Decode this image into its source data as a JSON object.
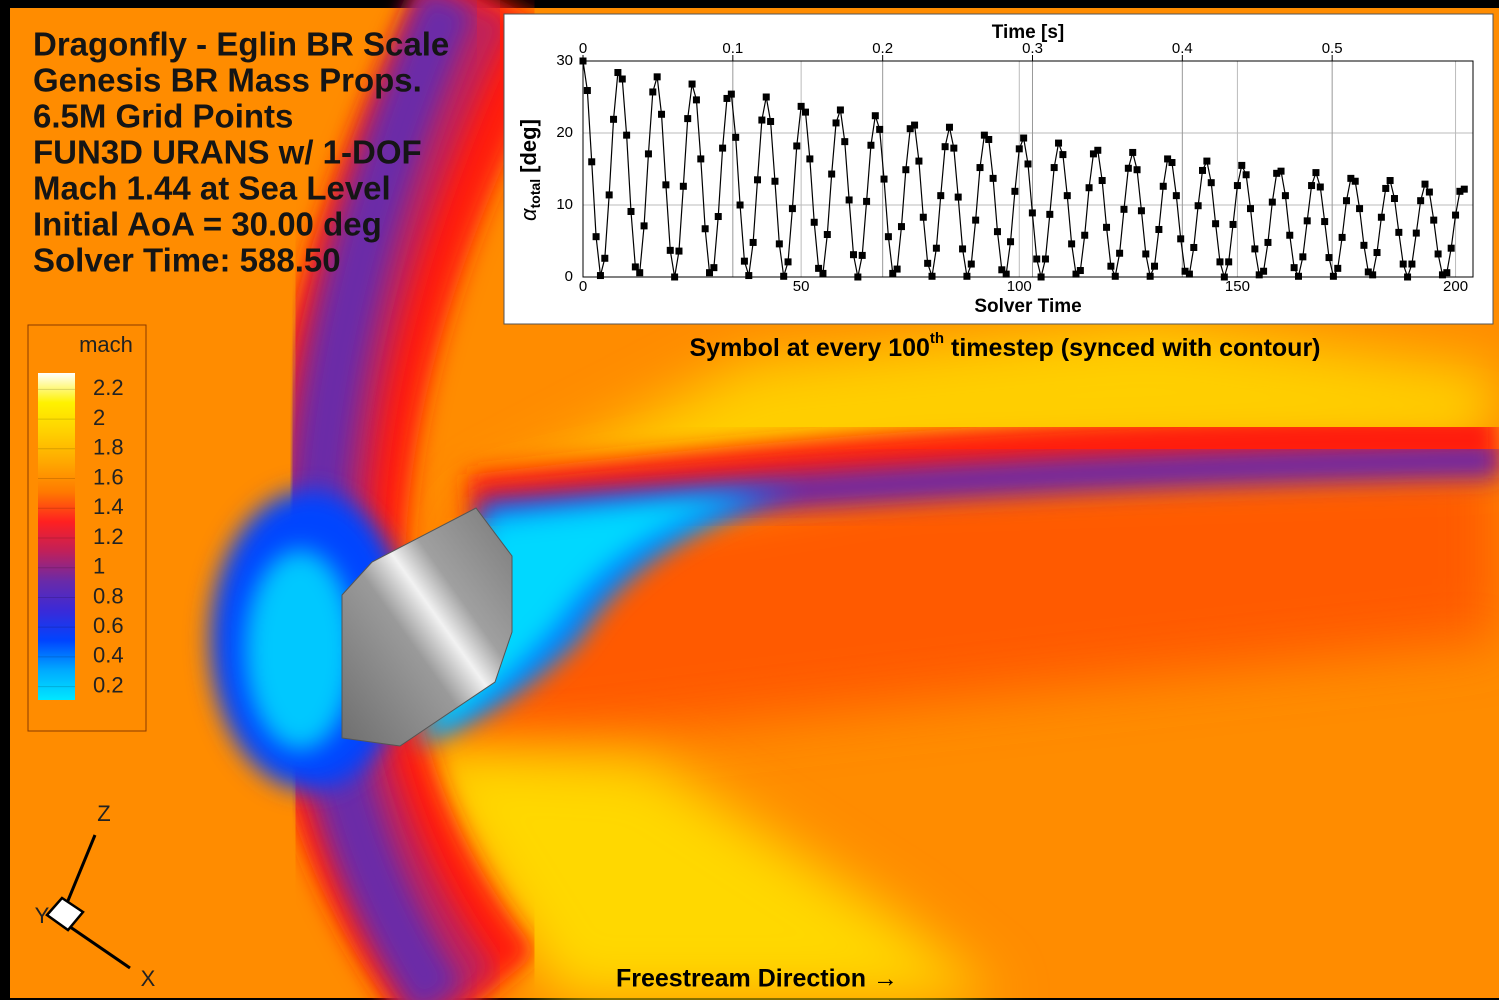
{
  "overlay_text": [
    "Dragonfly - Eglin BR Scale",
    "Genesis BR Mass Props.",
    "6.5M Grid Points",
    "FUN3D URANS w/ 1-DOF",
    "Mach 1.44 at Sea Level",
    "Initial AoA = 30.00 deg",
    "Solver Time: 588.50"
  ],
  "colorbar": {
    "title": "mach",
    "lim": [
      0.11,
      2.31
    ],
    "ticks": [
      0.2,
      0.4,
      0.6,
      0.8,
      1,
      1.2,
      1.4,
      1.6,
      1.8,
      2,
      2.2
    ],
    "colors": [
      "#00e8ff",
      "#00aaff",
      "#0044ff",
      "#3a2ad8",
      "#6a2aa8",
      "#c0205a",
      "#ff2020",
      "#ff7a00",
      "#ffa800",
      "#ffd000",
      "#fff200",
      "#ffffff"
    ]
  },
  "axes_triad": {
    "z": "Z",
    "y": "Y",
    "x": "X"
  },
  "footer": "Freestream Direction →",
  "chart_data": {
    "type": "line",
    "x_label": "Solver Time",
    "x2_label": "Time [s]",
    "y_label": {
      "symbol": "α",
      "subscript": "total",
      "unit": "[deg]"
    },
    "caption": [
      "Symbol at every 100",
      "th",
      " timestep (synced with contour)"
    ],
    "x": [
      0,
      1,
      2,
      3,
      4,
      5,
      6,
      7,
      8,
      9,
      10,
      11,
      12,
      13,
      14,
      15,
      16,
      17,
      18,
      19,
      20,
      21,
      22,
      23,
      24,
      25,
      26,
      27,
      28,
      29,
      30,
      31,
      32,
      33,
      34,
      35,
      36,
      37,
      38,
      39,
      40,
      41,
      42,
      43,
      44,
      45,
      46,
      47,
      48,
      49,
      50,
      51,
      52,
      53,
      54,
      55,
      56,
      57,
      58,
      59,
      60,
      61,
      62,
      63,
      64,
      65,
      66,
      67,
      68,
      69,
      70,
      71,
      72,
      73,
      74,
      75,
      76,
      77,
      78,
      79,
      80,
      81,
      82,
      83,
      84,
      85,
      86,
      87,
      88,
      89,
      90,
      91,
      92,
      93,
      94,
      95,
      96,
      97,
      98,
      99,
      100,
      101,
      102,
      103,
      104,
      105,
      106,
      107,
      108,
      109,
      110,
      111,
      112,
      113,
      114,
      115,
      116,
      117,
      118,
      119,
      120,
      121,
      122,
      123,
      124,
      125,
      126,
      127,
      128,
      129,
      130,
      131,
      132,
      133,
      134,
      135,
      136,
      137,
      138,
      139,
      140,
      141,
      142,
      143,
      144,
      145,
      146,
      147,
      148,
      149,
      150,
      151,
      152,
      153,
      154,
      155,
      156,
      157,
      158,
      159,
      160,
      161,
      162,
      163,
      164,
      165,
      166,
      167,
      168,
      169,
      170,
      171,
      172,
      173,
      174,
      175,
      176,
      177,
      178,
      179,
      180,
      181,
      182,
      183,
      184,
      185,
      186,
      187,
      188,
      189,
      190,
      191,
      192,
      193,
      194,
      195,
      196,
      197,
      198,
      199,
      200,
      201,
      202
    ],
    "series": [
      {
        "color": "#000000",
        "marker": "square",
        "values": [
          30,
          25.9,
          16,
          5.6,
          0.2,
          2.6,
          11.4,
          21.9,
          28.4,
          27.5,
          19.7,
          9.1,
          1.4,
          0.6,
          7.1,
          17.1,
          25.7,
          27.8,
          22.6,
          12.8,
          3.7,
          0,
          3.6,
          12.6,
          22,
          26.8,
          24.6,
          16.4,
          6.7,
          0.6,
          1.3,
          8.4,
          17.9,
          24.8,
          25.4,
          19.4,
          10,
          2.2,
          0.2,
          4.8,
          13.5,
          21.8,
          25,
          21.6,
          13.3,
          4.6,
          0.1,
          2.1,
          9.5,
          18.2,
          23.7,
          22.9,
          16.4,
          7.6,
          1.2,
          0.5,
          5.9,
          14.3,
          21.4,
          23.2,
          18.8,
          10.7,
          3.1,
          0,
          3,
          10.5,
          18.3,
          22.4,
          20.5,
          13.6,
          5.6,
          0.5,
          1.1,
          7,
          14.9,
          20.6,
          21.1,
          16.1,
          8.3,
          1.9,
          0.1,
          4,
          11.3,
          18.1,
          20.8,
          17.9,
          11.1,
          3.9,
          0.1,
          1.8,
          7.9,
          15.2,
          19.7,
          19.1,
          13.7,
          6.3,
          1,
          0.4,
          4.9,
          11.9,
          17.8,
          19.3,
          15.7,
          8.9,
          2.5,
          0,
          2.5,
          8.7,
          15.2,
          18.6,
          17,
          11.3,
          4.6,
          0.4,
          0.9,
          5.8,
          12.4,
          17.1,
          17.6,
          13.4,
          6.9,
          1.5,
          0.1,
          3.3,
          9.4,
          15.1,
          17.3,
          14.9,
          9.2,
          3.2,
          0.1,
          1.5,
          6.6,
          12.6,
          16.4,
          15.9,
          11.3,
          5.3,
          0.8,
          0.4,
          4.1,
          9.9,
          14.8,
          16.1,
          13.1,
          7.4,
          2.1,
          0,
          2.1,
          7.3,
          12.7,
          15.5,
          14.2,
          9.5,
          3.9,
          0.3,
          0.8,
          4.8,
          10.4,
          14.4,
          14.7,
          11.3,
          5.8,
          1.3,
          0.1,
          2.8,
          7.8,
          12.7,
          14.5,
          12.5,
          7.7,
          2.7,
          0.1,
          1.2,
          5.5,
          10.6,
          13.7,
          13.3,
          9.5,
          4.4,
          0.7,
          0.3,
          3.4,
          8.3,
          12.3,
          13.4,
          10.9,
          6.2,
          1.8,
          0,
          1.8,
          6.1,
          10.6,
          12.9,
          11.8,
          7.9,
          3.2,
          0.3,
          0.6,
          4,
          8.6,
          11.9,
          12.2
        ]
      }
    ],
    "xlim": [
      0,
      204
    ],
    "xticks": [
      0,
      50,
      100,
      150,
      200
    ],
    "x2lim": [
      0,
      0.594
    ],
    "x2ticks": [
      0,
      0.1,
      0.2,
      0.3,
      0.4,
      0.5
    ],
    "ylim": [
      0,
      30
    ],
    "yticks": [
      0,
      10,
      20,
      30
    ],
    "grid": true
  }
}
